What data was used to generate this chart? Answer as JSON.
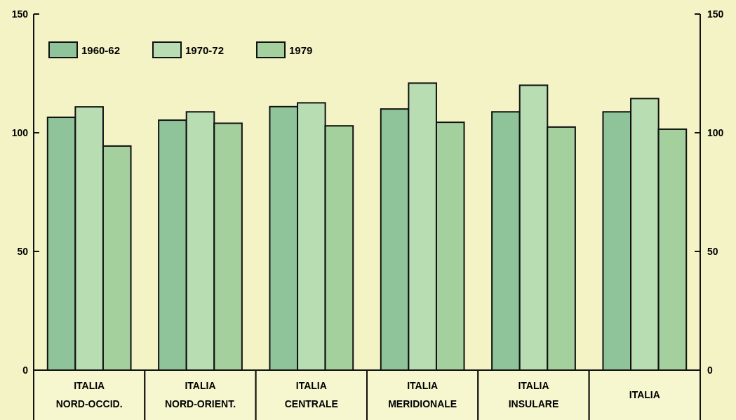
{
  "chart_data": {
    "type": "bar",
    "categories": [
      "ITALIA\nNORD-OCCID.",
      "ITALIA\nNORD-ORIENT.",
      "ITALIA\nCENTRALE",
      "ITALIA\nMERIDIONALE",
      "ITALIA\nINSULARE",
      "ITALIA"
    ],
    "series": [
      {
        "name": "1960-62",
        "color": "#8fc49a",
        "values": [
          106.5,
          105.3,
          111,
          110,
          108.8,
          108.8
        ]
      },
      {
        "name": "1970-72",
        "color": "#b9ddb2",
        "values": [
          110.9,
          108.8,
          112.6,
          120.9,
          120,
          114.4
        ]
      },
      {
        "name": "1979",
        "color": "#a3d09c",
        "values": [
          94.4,
          104,
          102.9,
          104.4,
          102.4,
          101.5
        ]
      }
    ],
    "ylim": [
      0,
      150
    ],
    "yticks": [
      0,
      50,
      100,
      150
    ],
    "y2lim": [
      0,
      150
    ],
    "y2ticks": [
      0,
      50,
      100,
      150
    ],
    "legend": "top left",
    "grid": false
  }
}
